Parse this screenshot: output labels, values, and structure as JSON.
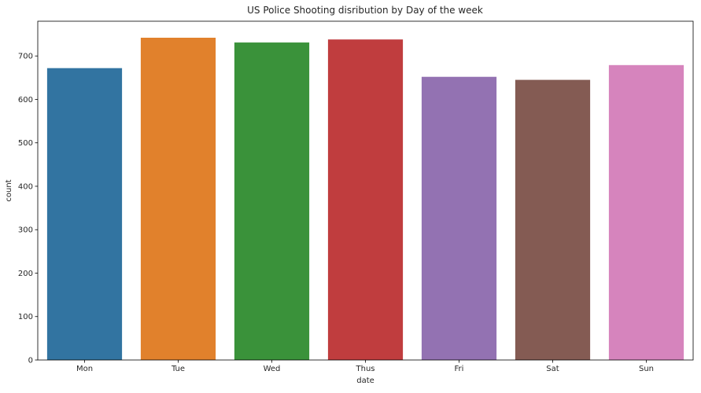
{
  "chart_data": {
    "type": "bar",
    "title": "US Police Shooting disribution by Day of the week",
    "xlabel": "date",
    "ylabel": "count",
    "categories": [
      "Mon",
      "Tue",
      "Wed",
      "Thus",
      "Fri",
      "Sat",
      "Sun"
    ],
    "values": [
      672,
      742,
      731,
      738,
      652,
      645,
      679
    ],
    "colors": [
      "#3274a1",
      "#e1812c",
      "#3a923a",
      "#c03d3e",
      "#9372b2",
      "#845b53",
      "#d684bd"
    ],
    "ylim": [
      0,
      780
    ],
    "yticks": [
      0,
      100,
      200,
      300,
      400,
      500,
      600,
      700
    ],
    "grid": false,
    "legend": "none"
  }
}
